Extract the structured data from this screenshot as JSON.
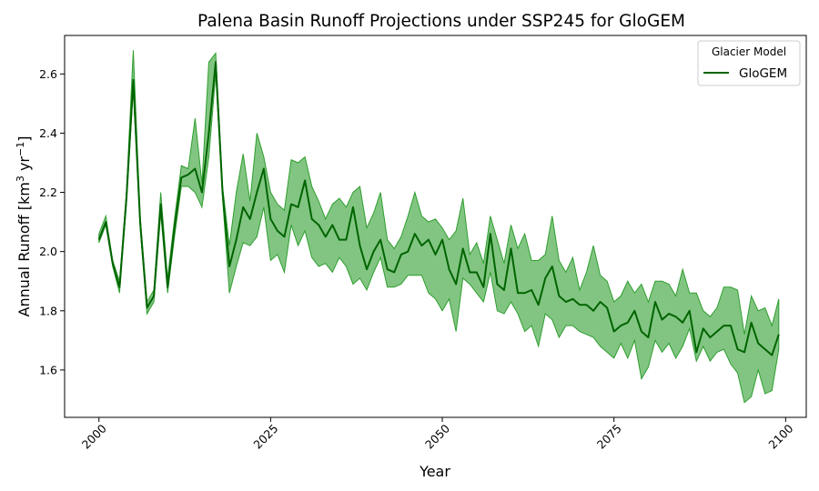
{
  "chart_data": {
    "type": "line",
    "title": "Palena Basin Runoff Projections under SSP245 for GloGEM",
    "xlabel": "Year",
    "ylabel": "Annual Runoff [km",
    "ylabel_sup1": "3",
    "ylabel_mid": " yr",
    "ylabel_sup2": "−1",
    "ylabel_end": "]",
    "xlim": [
      1995,
      2103
    ],
    "ylim": [
      1.44,
      2.73
    ],
    "xticks": [
      2000,
      2025,
      2050,
      2075,
      2100
    ],
    "yticks": [
      1.6,
      1.8,
      2.0,
      2.2,
      2.4,
      2.6
    ],
    "ytick_labels": [
      "1.6",
      "1.8",
      "2.0",
      "2.2",
      "2.4",
      "2.6"
    ],
    "grid": false,
    "legend": {
      "title": "Glacier Model",
      "placement": "top-right"
    },
    "colors": {
      "line": "#006400",
      "band": "#2e9e2e"
    },
    "series": [
      {
        "name": "GloGEM",
        "x": [
          2000,
          2001,
          2002,
          2003,
          2004,
          2005,
          2006,
          2007,
          2008,
          2009,
          2010,
          2011,
          2012,
          2013,
          2014,
          2015,
          2016,
          2017,
          2018,
          2019,
          2020,
          2021,
          2022,
          2023,
          2024,
          2025,
          2026,
          2027,
          2028,
          2029,
          2030,
          2031,
          2032,
          2033,
          2034,
          2035,
          2036,
          2037,
          2038,
          2039,
          2040,
          2041,
          2042,
          2043,
          2044,
          2045,
          2046,
          2047,
          2048,
          2049,
          2050,
          2051,
          2052,
          2053,
          2054,
          2055,
          2056,
          2057,
          2058,
          2059,
          2060,
          2061,
          2062,
          2063,
          2064,
          2065,
          2066,
          2067,
          2068,
          2069,
          2070,
          2071,
          2072,
          2073,
          2074,
          2075,
          2076,
          2077,
          2078,
          2079,
          2080,
          2081,
          2082,
          2083,
          2084,
          2085,
          2086,
          2087,
          2088,
          2089,
          2090,
          2091,
          2092,
          2093,
          2094,
          2095,
          2096,
          2097,
          2098,
          2099
        ],
        "values": [
          2.04,
          2.1,
          1.96,
          1.88,
          2.18,
          2.58,
          2.1,
          1.81,
          1.85,
          2.16,
          1.88,
          2.08,
          2.25,
          2.26,
          2.28,
          2.2,
          2.4,
          2.64,
          2.2,
          1.95,
          2.04,
          2.15,
          2.11,
          2.2,
          2.28,
          2.11,
          2.07,
          2.05,
          2.16,
          2.15,
          2.24,
          2.11,
          2.09,
          2.05,
          2.09,
          2.04,
          2.04,
          2.15,
          2.02,
          1.94,
          2.0,
          2.04,
          1.94,
          1.93,
          1.99,
          2.0,
          2.06,
          2.02,
          2.04,
          1.99,
          2.04,
          1.94,
          1.89,
          2.01,
          1.93,
          1.93,
          1.88,
          2.06,
          1.89,
          1.87,
          2.01,
          1.86,
          1.86,
          1.87,
          1.82,
          1.91,
          1.95,
          1.85,
          1.83,
          1.84,
          1.82,
          1.82,
          1.8,
          1.83,
          1.81,
          1.73,
          1.75,
          1.76,
          1.8,
          1.73,
          1.71,
          1.83,
          1.77,
          1.79,
          1.78,
          1.76,
          1.8,
          1.66,
          1.74,
          1.71,
          1.73,
          1.75,
          1.75,
          1.67,
          1.66,
          1.76,
          1.69,
          1.67,
          1.65,
          1.72
        ],
        "lower": [
          2.03,
          2.09,
          1.95,
          1.86,
          2.16,
          2.55,
          2.08,
          1.79,
          1.83,
          2.13,
          1.86,
          2.05,
          2.22,
          2.22,
          2.2,
          2.15,
          2.32,
          2.6,
          2.18,
          1.86,
          1.95,
          2.03,
          2.02,
          2.05,
          2.15,
          1.97,
          1.99,
          1.93,
          2.09,
          2.02,
          2.07,
          1.98,
          1.95,
          1.96,
          1.93,
          1.98,
          1.95,
          1.89,
          1.91,
          1.87,
          1.93,
          1.98,
          1.88,
          1.88,
          1.89,
          1.92,
          1.92,
          1.92,
          1.86,
          1.84,
          1.8,
          1.84,
          1.73,
          1.91,
          1.89,
          1.86,
          1.83,
          1.93,
          1.8,
          1.79,
          1.83,
          1.79,
          1.73,
          1.75,
          1.68,
          1.79,
          1.77,
          1.71,
          1.75,
          1.75,
          1.73,
          1.72,
          1.71,
          1.68,
          1.66,
          1.64,
          1.69,
          1.64,
          1.7,
          1.57,
          1.61,
          1.7,
          1.66,
          1.69,
          1.64,
          1.68,
          1.74,
          1.63,
          1.68,
          1.63,
          1.66,
          1.67,
          1.62,
          1.59,
          1.49,
          1.51,
          1.6,
          1.52,
          1.53,
          1.67
        ],
        "upper": [
          2.06,
          2.12,
          1.97,
          1.9,
          2.2,
          2.68,
          2.12,
          1.83,
          1.87,
          2.2,
          1.91,
          2.11,
          2.29,
          2.28,
          2.45,
          2.23,
          2.64,
          2.67,
          2.22,
          2.02,
          2.2,
          2.33,
          2.17,
          2.4,
          2.32,
          2.2,
          2.16,
          2.14,
          2.31,
          2.3,
          2.32,
          2.22,
          2.17,
          2.11,
          2.16,
          2.18,
          2.15,
          2.2,
          2.22,
          2.08,
          2.13,
          2.2,
          2.04,
          2.01,
          2.05,
          2.12,
          2.2,
          2.12,
          2.1,
          2.11,
          2.08,
          2.04,
          2.07,
          2.18,
          1.99,
          2.03,
          1.96,
          2.12,
          2.04,
          1.96,
          2.09,
          2.01,
          2.06,
          1.97,
          1.97,
          1.99,
          2.12,
          1.97,
          1.93,
          1.98,
          1.87,
          1.93,
          2.02,
          1.92,
          1.9,
          1.83,
          1.85,
          1.9,
          1.86,
          1.89,
          1.83,
          1.9,
          1.9,
          1.89,
          1.85,
          1.94,
          1.86,
          1.86,
          1.8,
          1.78,
          1.81,
          1.88,
          1.88,
          1.87,
          1.72,
          1.85,
          1.8,
          1.81,
          1.75,
          1.84
        ]
      }
    ]
  }
}
